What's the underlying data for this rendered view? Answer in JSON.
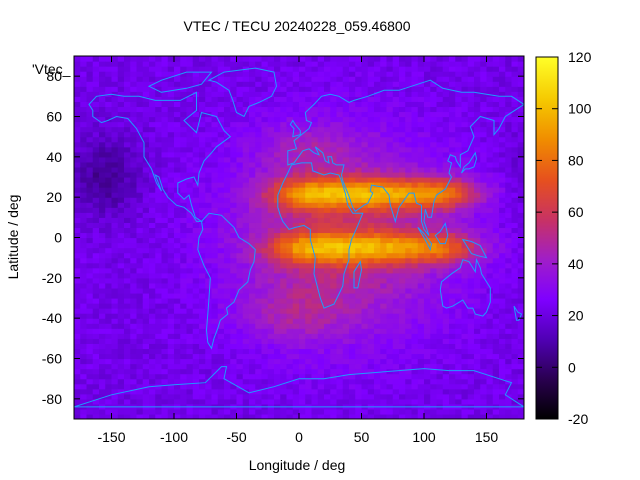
{
  "chart_data": {
    "type": "heatmap",
    "title": "VTEC / TECU 20240228_059.46800",
    "xlabel": "Longitude / deg",
    "ylabel": "Latitude / deg",
    "key_label": "'Vtec_",
    "xlim": [
      -180,
      180
    ],
    "ylim": [
      -90,
      90
    ],
    "xticks": [
      -150,
      -100,
      -50,
      0,
      50,
      100,
      150
    ],
    "yticks": [
      -80,
      -60,
      -40,
      -20,
      0,
      20,
      40,
      60,
      80
    ],
    "colorbar": {
      "range": [
        -20,
        120
      ],
      "ticks": [
        -20,
        0,
        20,
        40,
        60,
        80,
        100,
        120
      ],
      "palette": [
        "#000000",
        "#2a0050",
        "#5000b4",
        "#7f00ff",
        "#a01ec8",
        "#c83264",
        "#e6501e",
        "#f08c00",
        "#f5c800",
        "#ffff28"
      ]
    },
    "grid_resolution_deg": {
      "lon": 5,
      "lat": 2.5
    },
    "features": {
      "background_tec": 22,
      "dayside_center_lon": 35,
      "equatorial_anomaly_crests": [
        {
          "name": "northern crest",
          "lat": 22,
          "lon_range": [
            -30,
            150
          ],
          "peak_tec": 110
        },
        {
          "name": "southern crest",
          "lat": -5,
          "lon_range": [
            -30,
            150
          ],
          "peak_tec": 105
        }
      ],
      "dark_region": {
        "center_lon": -155,
        "center_lat": 30,
        "min_tec": 5
      }
    }
  }
}
